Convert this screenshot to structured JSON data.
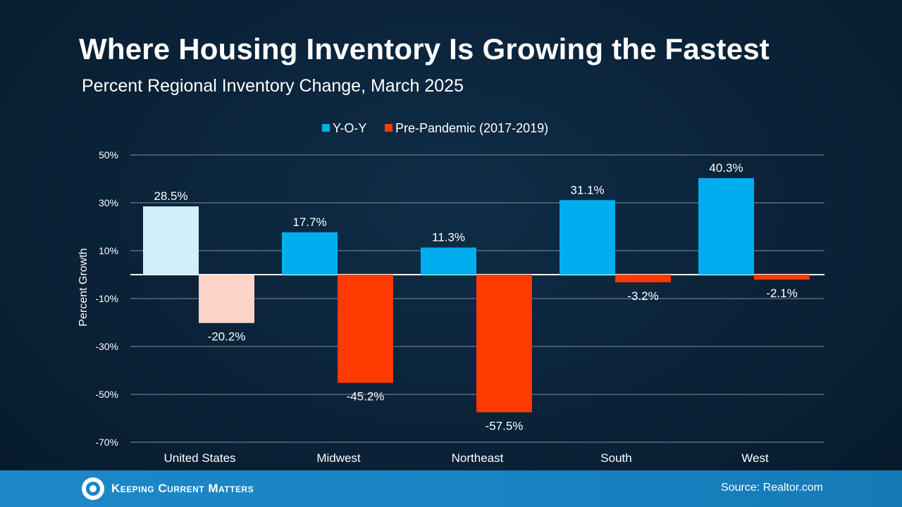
{
  "title": "Where Housing Inventory Is Growing the Fastest",
  "subtitle": "Percent Regional Inventory Change, March 2025",
  "footer": {
    "logo_text": "Keeping Current Matters",
    "logo_icon": "kcm-swirl-logo",
    "source": "Source: Realtor.com"
  },
  "colors": {
    "yoy": "#00aeef",
    "pre": "#ff3a00",
    "yoy_highlight": "#d2eefb",
    "pre_highlight": "#ffd4c8",
    "grid": "#7f8c99"
  },
  "chart_data": {
    "type": "bar",
    "title": "Where Housing Inventory Is Growing the Fastest",
    "subtitle": "Percent Regional Inventory Change, March 2025",
    "categories": [
      "United States",
      "Midwest",
      "Northeast",
      "South",
      "West"
    ],
    "series": [
      {
        "name": "Y-O-Y",
        "values": [
          28.5,
          17.7,
          11.3,
          31.1,
          40.3
        ],
        "labels": [
          "28.5%",
          "17.7%",
          "11.3%",
          "31.1%",
          "40.3%"
        ]
      },
      {
        "name": "Pre-Pandemic (2017-2019)",
        "values": [
          -20.2,
          -45.2,
          -57.5,
          -3.2,
          -2.1
        ],
        "labels": [
          "-20.2%",
          "-45.2%",
          "-57.5%",
          "-3.2%",
          "-2.1%"
        ]
      }
    ],
    "highlighted_category": "United States",
    "ylabel": "Percent Growth",
    "xlabel": "",
    "ylim": [
      -70,
      50
    ],
    "yticks": [
      50,
      30,
      10,
      -10,
      -30,
      -50,
      -70
    ],
    "ytick_labels": [
      "50%",
      "30%",
      "10%",
      "-10%",
      "-30%",
      "-50%",
      "-70%"
    ],
    "grid": true,
    "legend": "top-center"
  }
}
